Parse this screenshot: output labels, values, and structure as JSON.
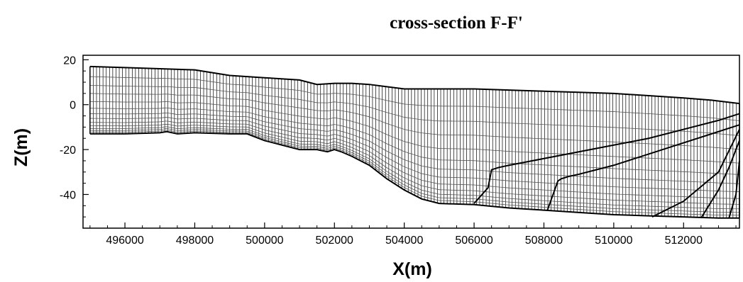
{
  "chart_data": {
    "type": "line",
    "title": "cross-section F-F'",
    "xlabel": "X(m)",
    "ylabel": "Z(m)",
    "xlim": [
      494800,
      513600
    ],
    "ylim": [
      -55,
      22
    ],
    "x_ticks": [
      496000,
      498000,
      500000,
      502000,
      504000,
      506000,
      508000,
      510000,
      512000
    ],
    "y_ticks": [
      20,
      0,
      -20,
      -40
    ],
    "grid": false,
    "series": [
      {
        "role": "top_surface",
        "x": [
          495000,
          496000,
          497000,
          498000,
          499000,
          500000,
          501000,
          501500,
          502000,
          502500,
          503000,
          503500,
          504000,
          505000,
          506000,
          507000,
          508000,
          509000,
          510000,
          511000,
          512000,
          512800,
          513600
        ],
        "y": [
          17,
          16.5,
          16,
          15.5,
          13,
          12,
          11,
          9,
          9.5,
          9.5,
          9,
          8,
          7,
          7,
          7,
          6.5,
          6,
          5.5,
          5,
          4,
          3,
          2,
          0.5
        ]
      },
      {
        "role": "bottom_surface",
        "x": [
          495000,
          496000,
          497000,
          497200,
          497500,
          498000,
          499000,
          499500,
          500000,
          500500,
          501000,
          501500,
          501800,
          502000,
          502200,
          502500,
          503000,
          503500,
          504000,
          504500,
          505000,
          506000,
          507000,
          508000,
          509000,
          510000,
          511000,
          512000,
          513000,
          513600
        ],
        "y": [
          -13,
          -13,
          -12.5,
          -12,
          -13,
          -12.5,
          -13,
          -13,
          -16,
          -18,
          -20,
          -20,
          -21,
          -20,
          -21,
          -23,
          -27,
          -33,
          -38,
          -42,
          -44,
          -44.5,
          -46,
          -47,
          -48,
          -49,
          -49.5,
          -50,
          -50.5,
          -50.5
        ]
      },
      {
        "role": "boundary_1",
        "x": [
          506000,
          506400,
          506500,
          506700,
          507000,
          508000,
          509000,
          510000,
          511000,
          512000,
          513000,
          513600
        ],
        "y": [
          -44,
          -37,
          -29,
          -28,
          -27,
          -24,
          -21,
          -18,
          -15,
          -11,
          -7,
          -4
        ]
      },
      {
        "role": "boundary_2",
        "x": [
          508100,
          508400,
          508500,
          508700,
          509000,
          510000,
          511000,
          512000,
          513000,
          513600
        ],
        "y": [
          -47,
          -34,
          -33,
          -32,
          -31,
          -27,
          -22,
          -17,
          -12,
          -9
        ]
      },
      {
        "role": "boundary_3",
        "x": [
          511100,
          512000,
          513000,
          513600
        ],
        "y": [
          -50,
          -43,
          -30,
          -11
        ]
      },
      {
        "role": "boundary_4",
        "x": [
          512500,
          513000,
          513300,
          513600
        ],
        "y": [
          -50.5,
          -38,
          -28,
          -16
        ]
      },
      {
        "role": "boundary_5",
        "x": [
          513300,
          513500,
          513600
        ],
        "y": [
          -50.5,
          -40,
          -25
        ]
      }
    ]
  }
}
